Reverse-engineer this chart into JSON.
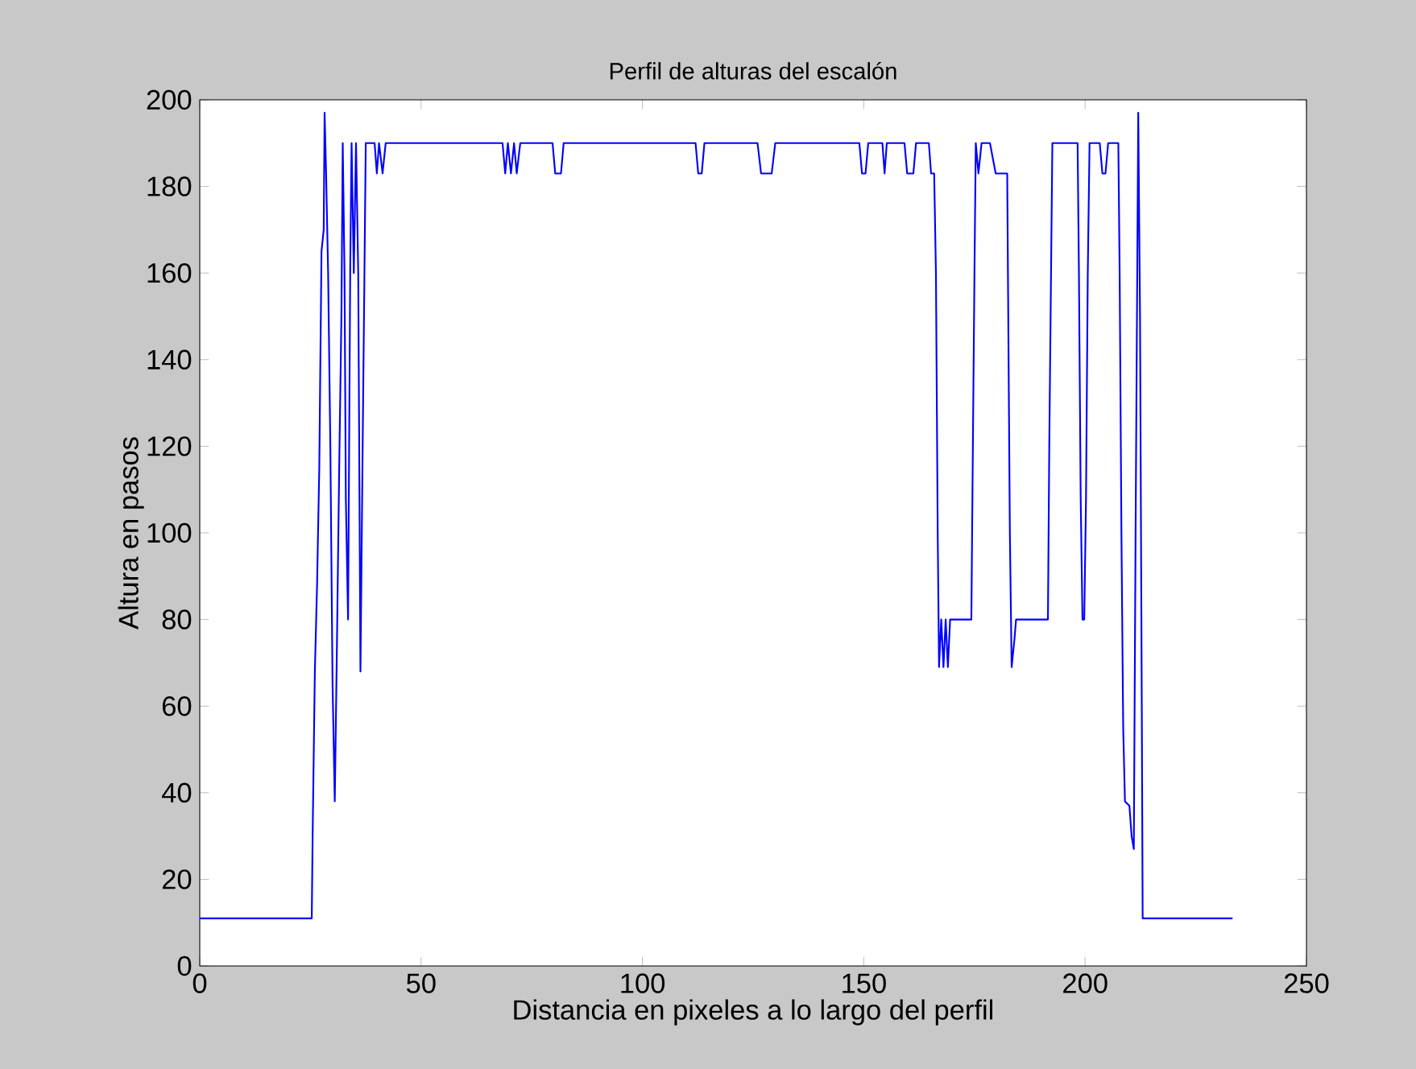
{
  "chart_data": {
    "type": "line",
    "title": "Perfil de alturas del escalón",
    "xlabel": "Distancia en pixeles a lo largo del perfil",
    "ylabel": "Altura en pasos",
    "xlim": [
      0,
      250
    ],
    "ylim": [
      0,
      200
    ],
    "xticks": [
      0,
      50,
      100,
      150,
      200,
      250
    ],
    "yticks": [
      0,
      20,
      40,
      60,
      80,
      100,
      120,
      140,
      160,
      180,
      200
    ],
    "line_style": "solid",
    "marker": "none",
    "series": [
      {
        "color": "#0000ff",
        "x": [
          0,
          25.3,
          25.5,
          26,
          26.5,
          27,
          27.5,
          28,
          28.2,
          28.5,
          29,
          29.5,
          30,
          30.5,
          31,
          31.5,
          32,
          32.3,
          32.7,
          33,
          33.5,
          34,
          34.3,
          34.8,
          35.3,
          35.8,
          36.3,
          36.8,
          37.2,
          37.5,
          39.5,
          40,
          40.5,
          41.3,
          42,
          68.4,
          69,
          69.6,
          70.3,
          71,
          71.6,
          72.4,
          79.7,
          80.3,
          81.6,
          82.2,
          112,
          112.6,
          113.4,
          114,
          126,
          126.8,
          129.2,
          130,
          149,
          149.6,
          150.4,
          151,
          154.2,
          154.7,
          155.2,
          159.2,
          159.8,
          161.2,
          161.8,
          164.7,
          165.2,
          165.9,
          166.3,
          166.7,
          167,
          167.5,
          168,
          168.5,
          169,
          169.5,
          174.3,
          174.6,
          175,
          175.3,
          175.9,
          176.6,
          178.5,
          179.8,
          182.4,
          182.6,
          183,
          183.4,
          184,
          184.4,
          191.6,
          191.9,
          192.3,
          192.6,
          198.3,
          198.6,
          199,
          199.4,
          199.8,
          200.2,
          200.6,
          201,
          203.3,
          203.9,
          204.6,
          205.2,
          207.5,
          207.8,
          208.2,
          208.6,
          209,
          210,
          210.5,
          211,
          211.4,
          212,
          212.4,
          212.8,
          213,
          233.3
        ],
        "values": [
          11,
          11,
          30,
          68,
          88,
          115,
          165,
          170,
          197,
          185,
          160,
          120,
          65,
          38,
          75,
          115,
          150,
          190,
          160,
          108,
          80,
          162,
          190,
          160,
          190,
          160,
          68,
          120,
          160,
          190,
          190,
          183,
          190,
          183,
          190,
          190,
          183,
          190,
          183,
          190,
          183,
          190,
          190,
          183,
          183,
          190,
          190,
          183,
          183,
          190,
          190,
          183,
          183,
          190,
          190,
          183,
          183,
          190,
          190,
          183,
          190,
          190,
          183,
          183,
          190,
          190,
          183,
          183,
          160,
          100,
          69,
          80,
          69,
          80,
          69,
          80,
          80,
          115,
          160,
          190,
          183,
          190,
          190,
          183,
          183,
          155,
          100,
          69,
          75,
          80,
          80,
          120,
          160,
          190,
          190,
          160,
          108,
          80,
          80,
          108,
          160,
          190,
          190,
          183,
          183,
          190,
          190,
          160,
          100,
          55,
          38,
          37,
          30,
          27,
          100,
          197,
          150,
          60,
          11,
          11
        ]
      }
    ]
  }
}
